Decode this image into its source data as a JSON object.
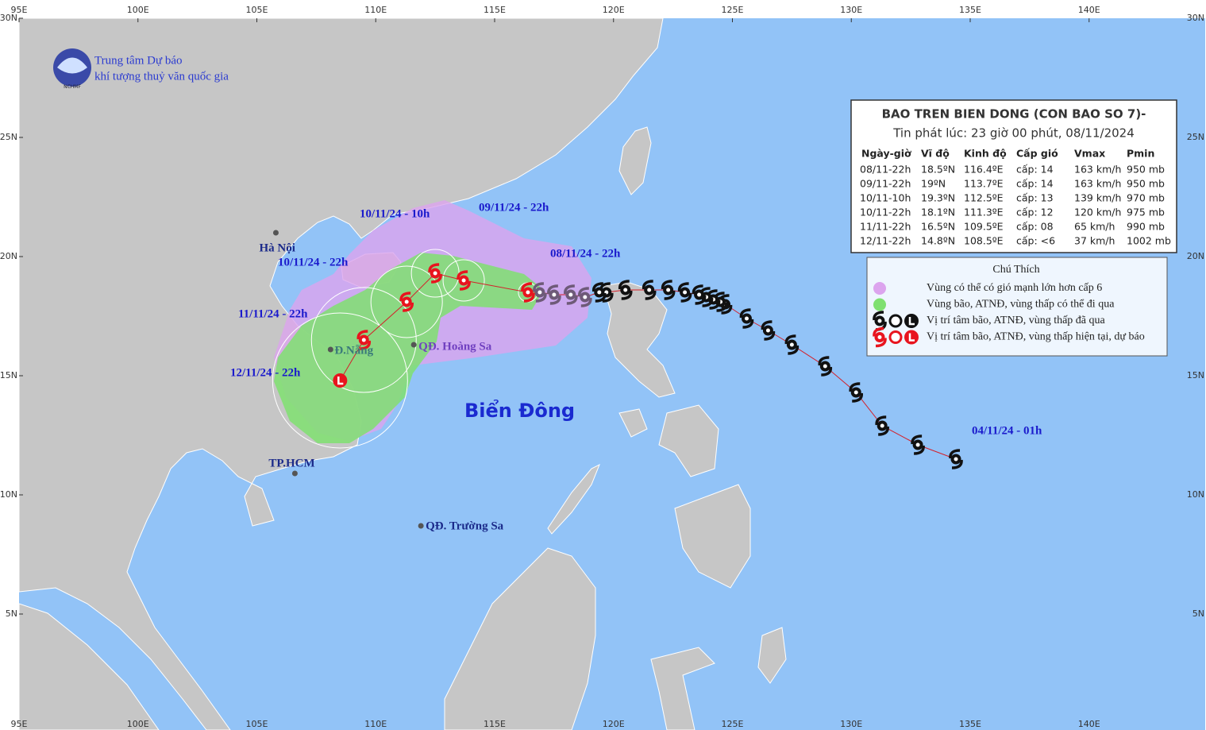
{
  "map": {
    "lon_ticks": [
      {
        "value": 95,
        "label": "95E"
      },
      {
        "value": 100,
        "label": "100E"
      },
      {
        "value": 105,
        "label": "105E"
      },
      {
        "value": 110,
        "label": "110E"
      },
      {
        "value": 115,
        "label": "115E"
      },
      {
        "value": 120,
        "label": "120E"
      },
      {
        "value": 125,
        "label": "125E"
      },
      {
        "value": 130,
        "label": "130E"
      },
      {
        "value": 135,
        "label": "135E"
      },
      {
        "value": 140,
        "label": "140E"
      }
    ],
    "lat_ticks": [
      {
        "value": 5,
        "label": "5N"
      },
      {
        "value": 10,
        "label": "10N"
      },
      {
        "value": 15,
        "label": "15N"
      },
      {
        "value": 20,
        "label": "20N"
      },
      {
        "value": 25,
        "label": "25N"
      },
      {
        "value": 30,
        "label": "30N"
      }
    ]
  },
  "logo": {
    "line1": "Trung tâm Dự báo",
    "line2": "khí tượng thuỷ văn quốc gia",
    "abbr": "NCHMF"
  },
  "sea_label": "Biển Đông",
  "places": [
    {
      "name": "Hà Nội",
      "lat": 21.0,
      "lon": 105.8
    },
    {
      "name": "Đ.Nẵng",
      "lat": 16.1,
      "lon": 108.1
    },
    {
      "name": "QĐ. Hoàng Sa",
      "lat": 16.3,
      "lon": 111.6
    },
    {
      "name": "TP.HCM",
      "lat": 10.9,
      "lon": 106.6
    },
    {
      "name": "QĐ. Trường Sa",
      "lat": 8.7,
      "lon": 111.9
    }
  ],
  "track": {
    "past": [
      {
        "lat": 11.5,
        "lon": 134.4
      },
      {
        "lat": 12.1,
        "lon": 132.8
      },
      {
        "lat": 12.9,
        "lon": 131.3
      },
      {
        "lat": 14.3,
        "lon": 130.2
      },
      {
        "lat": 15.4,
        "lon": 128.9
      },
      {
        "lat": 16.3,
        "lon": 127.5
      },
      {
        "lat": 16.9,
        "lon": 126.5
      },
      {
        "lat": 17.4,
        "lon": 125.6
      },
      {
        "lat": 18.0,
        "lon": 124.7
      },
      {
        "lat": 18.1,
        "lon": 124.5
      },
      {
        "lat": 18.2,
        "lon": 124.2
      },
      {
        "lat": 18.3,
        "lon": 123.9
      },
      {
        "lat": 18.4,
        "lon": 123.6
      },
      {
        "lat": 18.5,
        "lon": 123.0
      },
      {
        "lat": 18.6,
        "lon": 122.3
      },
      {
        "lat": 18.6,
        "lon": 121.5
      },
      {
        "lat": 18.6,
        "lon": 120.5
      },
      {
        "lat": 18.5,
        "lon": 119.7
      },
      {
        "lat": 18.5,
        "lon": 119.4
      }
    ],
    "interpolated": [
      {
        "lat": 18.3,
        "lon": 118.8
      },
      {
        "lat": 18.4,
        "lon": 118.2
      },
      {
        "lat": 18.4,
        "lon": 117.5
      },
      {
        "lat": 18.5,
        "lon": 116.9
      }
    ],
    "forecast": [
      {
        "lat": 18.5,
        "lon": 116.4
      },
      {
        "lat": 19.0,
        "lon": 113.7
      },
      {
        "lat": 19.3,
        "lon": 112.5
      },
      {
        "lat": 18.1,
        "lon": 111.3
      },
      {
        "lat": 16.5,
        "lon": 109.5
      },
      {
        "lat": 14.8,
        "lon": 108.5
      }
    ]
  },
  "time_labels": [
    "04/11/24 - 01h",
    "08/11/24 - 22h",
    "09/11/24 - 22h",
    "10/11/24 - 10h",
    "10/11/24 - 22h",
    "11/11/24 - 22h",
    "12/11/24 - 22h"
  ],
  "bulletin": {
    "title": "BAO TREN BIEN DONG (CON BAO SO 7)-",
    "issued": "Tin phát lúc: 23 giờ 00 phút, 08/11/2024",
    "columns": [
      "Ngày-giờ",
      "Vĩ độ",
      "Kinh độ",
      "Cấp gió",
      "Vmax",
      "Pmin"
    ],
    "rows": [
      [
        "08/11-22h",
        "18.5ºN",
        "116.4ºE",
        "cấp: 14",
        "163 km/h",
        "950 mb"
      ],
      [
        "09/11-22h",
        "19ºN",
        "113.7ºE",
        "cấp: 14",
        "163 km/h",
        "950 mb"
      ],
      [
        "10/11-10h",
        "19.3ºN",
        "112.5ºE",
        "cấp: 13",
        "139 km/h",
        "970 mb"
      ],
      [
        "10/11-22h",
        "18.1ºN",
        "111.3ºE",
        "cấp: 12",
        "120 km/h",
        "975 mb"
      ],
      [
        "11/11-22h",
        "16.5ºN",
        "109.5ºE",
        "cấp: 08",
        "65 km/h",
        "990 mb"
      ],
      [
        "12/11-22h",
        "14.8ºN",
        "108.5ºE",
        "cấp: <6",
        "37 km/h",
        "1002 mb"
      ]
    ]
  },
  "legend": {
    "title": "Chú Thích",
    "items": [
      "Vùng có thể có gió mạnh lớn hơn cấp 6",
      "Vùng bão, ATNĐ, vùng thấp có thể đi qua",
      "Vị trí tâm bão, ATNĐ, vùng thấp đã qua",
      "Vị trí tâm bão, ATNĐ, vùng thấp hiện tại, dự báo"
    ]
  }
}
